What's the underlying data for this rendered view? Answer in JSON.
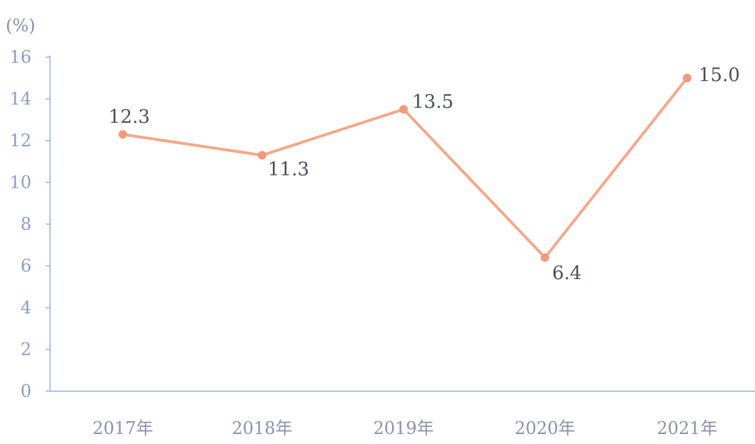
{
  "chart_data": {
    "type": "line",
    "unit_label": "(%)",
    "categories": [
      "2017年",
      "2018年",
      "2019年",
      "2020年",
      "2021年"
    ],
    "series": [
      {
        "values": [
          12.3,
          11.3,
          13.5,
          6.4,
          15.0
        ],
        "labels": [
          "12.3",
          "11.3",
          "13.5",
          "6.4",
          "15.0"
        ]
      }
    ],
    "y_ticks": [
      "0",
      "2",
      "4",
      "6",
      "8",
      "10",
      "12",
      "14",
      "16"
    ],
    "ylim": [
      0,
      16
    ],
    "grid": false,
    "colors": {
      "line": "#f3a98a",
      "marker": "#f29a79",
      "axis": "#8fb4dc",
      "tick_text": "#8b9dc7",
      "category_text": "#8a92b0",
      "data_text": "#4a4f5c"
    }
  }
}
